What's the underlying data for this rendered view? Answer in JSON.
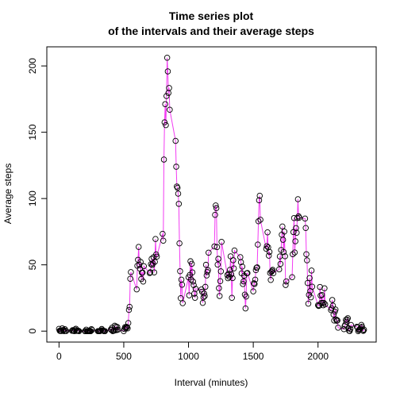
{
  "chart_data": {
    "type": "line",
    "title": [
      "Time series plot",
      "of the intervals and their average steps"
    ],
    "xlabel": "Interval (minutes)",
    "ylabel": "Average steps",
    "line_color": "#f23cf2",
    "marker_color": "#000000",
    "xlim": [
      -94.2,
      2449.2
    ],
    "ylim": [
      -8.25,
      214.42
    ],
    "xticks": [
      0,
      500,
      1000,
      1500,
      2000
    ],
    "yticks": [
      0,
      50,
      100,
      150,
      200
    ],
    "x": [
      0,
      5,
      10,
      15,
      20,
      25,
      30,
      35,
      40,
      45,
      50,
      55,
      100,
      105,
      110,
      115,
      120,
      125,
      130,
      135,
      140,
      145,
      150,
      155,
      200,
      205,
      210,
      215,
      220,
      225,
      230,
      235,
      240,
      245,
      250,
      255,
      300,
      305,
      310,
      315,
      320,
      325,
      330,
      335,
      340,
      345,
      350,
      355,
      400,
      405,
      410,
      415,
      420,
      425,
      430,
      435,
      440,
      445,
      450,
      455,
      500,
      505,
      510,
      515,
      520,
      525,
      530,
      535,
      540,
      545,
      550,
      555,
      600,
      605,
      610,
      615,
      620,
      625,
      630,
      635,
      640,
      645,
      650,
      655,
      700,
      705,
      710,
      715,
      720,
      725,
      730,
      735,
      740,
      745,
      750,
      755,
      800,
      805,
      810,
      815,
      820,
      825,
      830,
      835,
      840,
      845,
      850,
      855,
      900,
      905,
      910,
      915,
      920,
      925,
      930,
      935,
      940,
      945,
      950,
      955,
      1000,
      1005,
      1010,
      1015,
      1020,
      1025,
      1030,
      1035,
      1040,
      1045,
      1050,
      1055,
      1100,
      1105,
      1110,
      1115,
      1120,
      1125,
      1130,
      1135,
      1140,
      1145,
      1150,
      1155,
      1200,
      1205,
      1210,
      1215,
      1220,
      1225,
      1230,
      1235,
      1240,
      1245,
      1250,
      1255,
      1300,
      1305,
      1310,
      1315,
      1320,
      1325,
      1330,
      1335,
      1340,
      1345,
      1350,
      1355,
      1400,
      1405,
      1410,
      1415,
      1420,
      1425,
      1430,
      1435,
      1440,
      1445,
      1450,
      1455,
      1500,
      1505,
      1510,
      1515,
      1520,
      1525,
      1530,
      1535,
      1540,
      1545,
      1550,
      1555,
      1600,
      1605,
      1610,
      1615,
      1620,
      1625,
      1630,
      1635,
      1640,
      1645,
      1650,
      1655,
      1700,
      1705,
      1710,
      1715,
      1720,
      1725,
      1730,
      1735,
      1740,
      1745,
      1750,
      1755,
      1800,
      1805,
      1810,
      1815,
      1820,
      1825,
      1830,
      1835,
      1840,
      1845,
      1850,
      1855,
      1900,
      1905,
      1910,
      1915,
      1920,
      1925,
      1930,
      1935,
      1940,
      1945,
      1950,
      1955,
      2000,
      2005,
      2010,
      2015,
      2020,
      2025,
      2030,
      2035,
      2040,
      2045,
      2050,
      2055,
      2100,
      2105,
      2110,
      2115,
      2120,
      2125,
      2130,
      2135,
      2140,
      2145,
      2150,
      2155,
      2200,
      2205,
      2210,
      2215,
      2220,
      2225,
      2230,
      2235,
      2240,
      2245,
      2250,
      2255,
      2300,
      2305,
      2310,
      2315,
      2320,
      2325,
      2330,
      2335,
      2340,
      2345,
      2350,
      2355
    ],
    "values": [
      1.7,
      0.3,
      0.1,
      0.2,
      0.1,
      2.1,
      0.5,
      0.9,
      0,
      1.5,
      0.3,
      0.1,
      0.3,
      0.7,
      0.2,
      0.3,
      0,
      1.1,
      1.8,
      0.2,
      0.2,
      0.4,
      0.3,
      0,
      0,
      0,
      1.1,
      0,
      0,
      0.1,
      0,
      0.2,
      0,
      0,
      1.5,
      0.9,
      0,
      0,
      0,
      0,
      0.2,
      0.6,
      1.6,
      0.6,
      0.5,
      0.1,
      0,
      0,
      1.2,
      0.9,
      2.6,
      0,
      0.3,
      0.4,
      4.1,
      0.7,
      3.5,
      0.8,
      3.1,
      1.1,
      0,
      1.6,
      3.0,
      2.2,
      3.3,
      3.0,
      2.1,
      6.1,
      16.0,
      18.3,
      39.5,
      44.5,
      31.5,
      49.3,
      53.8,
      63.5,
      50.0,
      47.1,
      52.2,
      39.3,
      44.0,
      44.2,
      37.4,
      49.0,
      43.8,
      44.4,
      50.5,
      54.5,
      49.9,
      51.0,
      55.7,
      44.3,
      52.3,
      69.5,
      57.8,
      56.2,
      73.4,
      68.2,
      129.4,
      157.5,
      171.2,
      155.4,
      177.3,
      206.2,
      195.9,
      179.6,
      183.4,
      167.0,
      143.5,
      124.0,
      109.1,
      108.1,
      103.7,
      96.0,
      66.2,
      45.2,
      24.8,
      38.8,
      35.0,
      21.1,
      40.6,
      27.0,
      42.4,
      52.7,
      38.9,
      50.8,
      44.3,
      37.4,
      34.7,
      28.3,
      25.1,
      31.9,
      31.4,
      29.7,
      21.3,
      25.5,
      28.4,
      26.5,
      33.4,
      50.0,
      42.0,
      44.6,
      46.0,
      59.2,
      63.9,
      87.7,
      94.8,
      92.8,
      63.4,
      50.2,
      54.5,
      32.4,
      26.5,
      37.7,
      45.1,
      67.3,
      42.3,
      39.9,
      43.3,
      41.0,
      46.2,
      56.4,
      42.8,
      25.1,
      40.0,
      53.5,
      47.3,
      60.8,
      55.8,
      52.0,
      43.6,
      48.7,
      35.5,
      37.5,
      41.8,
      27.5,
      17.1,
      26.1,
      43.6,
      43.8,
      30.0,
      36.1,
      35.5,
      38.8,
      46.0,
      47.8,
      48.1,
      65.3,
      82.9,
      98.7,
      102.1,
      84.0,
      62.1,
      64.1,
      74.5,
      63.2,
      56.9,
      59.8,
      43.9,
      38.6,
      44.7,
      45.5,
      46.2,
      43.7,
      46.6,
      56.3,
      50.7,
      61.2,
      72.7,
      78.9,
      68.9,
      59.7,
      75.1,
      56.5,
      34.8,
      37.5,
      40.7,
      58.0,
      74.7,
      85.3,
      59.3,
      67.8,
      77.7,
      74.2,
      85.3,
      99.5,
      86.6,
      85.6,
      84.9,
      77.8,
      58.0,
      53.4,
      36.3,
      20.7,
      27.4,
      40.0,
      30.2,
      25.5,
      45.7,
      33.5,
      19.6,
      19.0,
      19.3,
      33.3,
      26.8,
      21.2,
      27.3,
      21.3,
      19.5,
      21.3,
      32.3,
      20.2,
      15.9,
      17.2,
      23.5,
      19.2,
      12.5,
      8.0,
      14.7,
      16.3,
      8.7,
      7.8,
      8.1,
      2.6,
      1.5,
      3.7,
      4.8,
      8.5,
      7.1,
      8.7,
      9.8,
      2.2,
      0.3,
      0.1,
      1.6,
      4.6,
      3.3,
      2.8,
      0,
      0.8,
      1.0,
      1.6,
      2.6,
      4.7,
      3.3,
      0.6,
      0.2,
      1.1
    ]
  }
}
